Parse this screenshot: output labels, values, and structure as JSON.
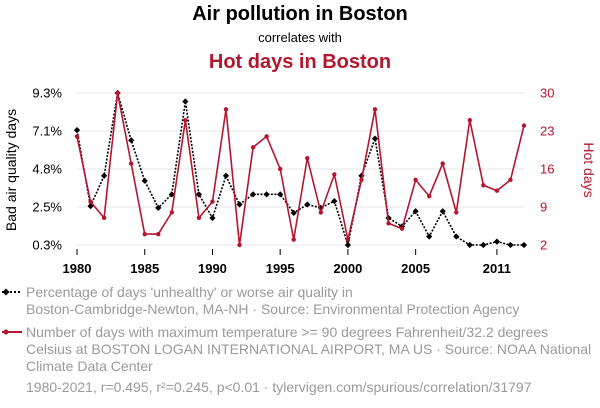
{
  "colors": {
    "series_a": "#000000",
    "series_b": "#b5162f",
    "grid": "#e6e6e6",
    "muted": "#9a9a9a"
  },
  "header": {
    "title": "Air pollution in Boston",
    "subtitle": "correlates with",
    "second_title": "Hot days in Boston"
  },
  "chart_data": {
    "type": "line",
    "x": [
      1980,
      1981,
      1982,
      1983,
      1984,
      1985,
      1986,
      1987,
      1988,
      1989,
      1990,
      1991,
      1992,
      1993,
      1994,
      1995,
      1996,
      1997,
      1998,
      1999,
      2000,
      2001,
      2002,
      2003,
      2004,
      2005,
      2006,
      2007,
      2008,
      2009,
      2010,
      2011,
      2012,
      2013
    ],
    "x_ticks": [
      "1980",
      "1985",
      "1990",
      "1995",
      "2000",
      "2005",
      "2011"
    ],
    "x_tick_values": [
      1980,
      1985,
      1990,
      1995,
      2000,
      2005,
      2011
    ],
    "xlim": [
      1980,
      2013
    ],
    "series": [
      {
        "name": "Bad air quality days",
        "axis": "left",
        "style": "dotted-diamond",
        "values": [
          7.1,
          2.6,
          4.4,
          9.3,
          6.5,
          4.1,
          2.5,
          3.3,
          8.8,
          3.3,
          1.9,
          4.4,
          2.7,
          3.3,
          3.3,
          3.3,
          2.2,
          2.7,
          2.5,
          2.9,
          0.3,
          4.4,
          6.6,
          1.9,
          1.4,
          2.3,
          0.8,
          2.3,
          0.8,
          0.3,
          0.3,
          0.5,
          0.3,
          0.3
        ]
      },
      {
        "name": "Hot days",
        "axis": "right",
        "style": "solid-circle",
        "values": [
          22,
          10,
          7,
          30,
          17,
          4,
          4,
          8,
          25,
          7,
          10,
          27,
          2,
          20,
          22,
          16,
          3,
          18,
          8,
          15,
          3,
          14,
          27,
          6,
          5,
          14,
          11,
          17,
          8,
          25,
          13,
          12,
          14,
          24
        ]
      }
    ],
    "left_axis": {
      "label": "Bad air quality days",
      "ticks": [
        "0.3%",
        "2.5%",
        "4.8%",
        "7.1%",
        "9.3%"
      ],
      "tick_values": [
        0.3,
        2.55,
        4.8,
        7.05,
        9.3
      ],
      "ylim": [
        0.3,
        9.3
      ]
    },
    "right_axis": {
      "label": "Hot days",
      "ticks": [
        "2",
        "9",
        "16",
        "23",
        "30"
      ],
      "tick_values": [
        2,
        9,
        16,
        23,
        30
      ],
      "ylim": [
        2,
        30
      ]
    }
  },
  "legend": {
    "series_a": [
      "Percentage of days 'unhealthy' or worse air quality in",
      "Boston-Cambridge-Newton, MA-NH · Source: Environmental Protection Agency"
    ],
    "series_b": [
      "Number of days with maximum temperature >= 90 degrees Fahrenheit/32.2 degrees",
      "Celsius at BOSTON LOGAN INTERNATIONAL AIRPORT, MA US · Source: NOAA National",
      "Climate Data Center"
    ]
  },
  "footer": {
    "text": "1980-2021, r=0.495, r²=0.245, p<0.01 · tylervigen.com/spurious/correlation/31797"
  }
}
